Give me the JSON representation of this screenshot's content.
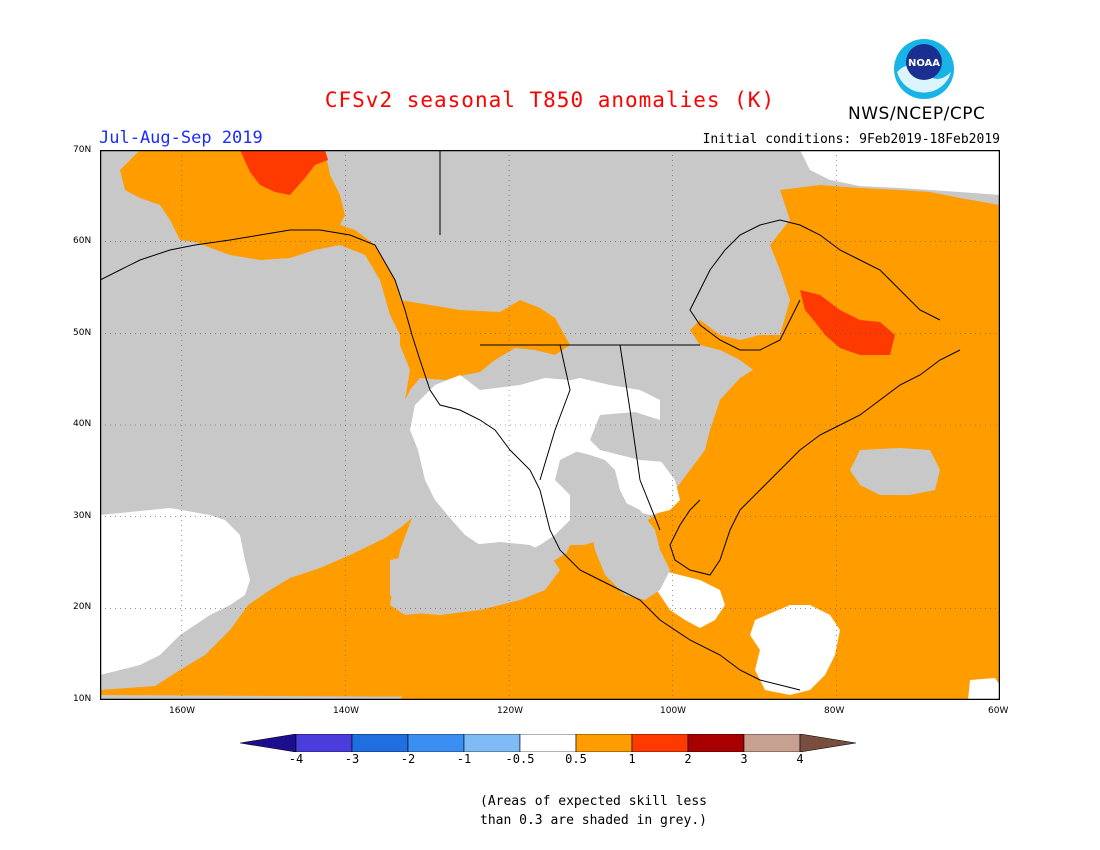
{
  "title": "CFSv2 seasonal T850 anomalies (K)",
  "season": "Jul-Aug-Sep 2019",
  "initial_conditions": "Initial conditions: 9Feb2019-18Feb2019",
  "agency": "NWS/NCEP/CPC",
  "logo_text": "NOAA",
  "map": {
    "lat_ticks": [
      "70N",
      "60N",
      "50N",
      "40N",
      "30N",
      "20N",
      "10N"
    ],
    "lon_ticks": [
      "160W",
      "140W",
      "120W",
      "100W",
      "80W",
      "60W"
    ],
    "lat_range": [
      10,
      70
    ],
    "lon_range": [
      -170,
      -60
    ],
    "grid": "dotted"
  },
  "colorbar": {
    "labels": [
      "-4",
      "-3",
      "-2",
      "-1",
      "-0.5",
      "0.5",
      "1",
      "2",
      "3",
      "4"
    ],
    "colors": [
      "#1c0f8f",
      "#4a3ddc",
      "#1f6fe0",
      "#3c8ff2",
      "#7fbcf5",
      "#ffffff",
      "#ff9c00",
      "#ff3a00",
      "#a80000",
      "#c8a092",
      "#7a4e3e"
    ]
  },
  "legend_colors": {
    "grey_skill": "#c8c8c8",
    "warm_1": "#ff9c00",
    "warm_2": "#ff3a00",
    "neutral": "#ffffff"
  },
  "note_line1": "(Areas of expected skill less",
  "note_line2": "than 0.3 are shaded in grey.)"
}
